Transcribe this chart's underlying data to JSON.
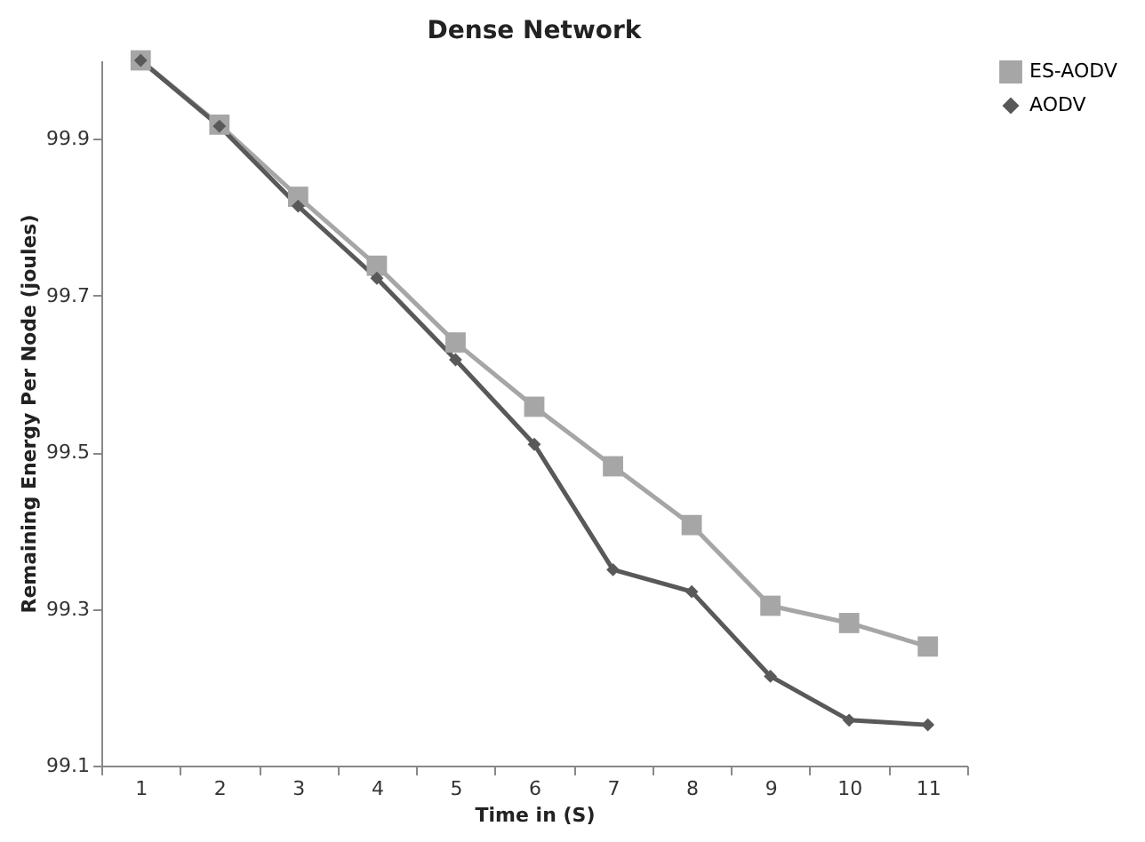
{
  "chart_data": {
    "type": "line",
    "title": "Dense Network",
    "xlabel": "Time in (S)",
    "ylabel": "Remaining Energy Per Node (joules)",
    "categories": [
      "1",
      "2",
      "3",
      "4",
      "5",
      "6",
      "7",
      "8",
      "9",
      "10",
      "11"
    ],
    "series": [
      {
        "name": "ES-AODV",
        "color": "#a6a6a6",
        "marker": "square",
        "values": [
          100.0,
          99.918,
          99.826,
          99.738,
          99.64,
          99.558,
          99.482,
          99.407,
          99.304,
          99.282,
          99.252
        ]
      },
      {
        "name": "AODV",
        "color": "#595959",
        "marker": "diamond",
        "values": [
          100.0,
          99.916,
          99.814,
          99.722,
          99.618,
          99.51,
          99.35,
          99.322,
          99.214,
          99.158,
          99.152
        ]
      }
    ],
    "ylim": [
      99.1,
      100.0
    ],
    "yticks": [
      99.1,
      99.3,
      99.5,
      99.7,
      99.9
    ],
    "grid": false,
    "legend": "right",
    "line_style": "solid"
  }
}
